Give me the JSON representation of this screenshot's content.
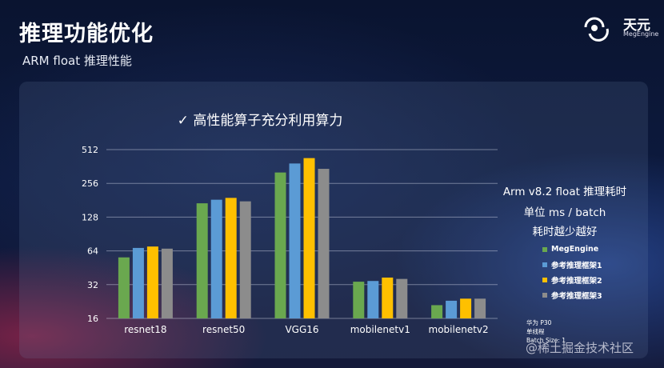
{
  "header": {
    "title": "推理功能优化",
    "subtitle": "ARM float 推理性能"
  },
  "logo": {
    "name": "天元",
    "sub": "MegEngine"
  },
  "info": {
    "line1": "Arm v8.2  float 推理耗时",
    "line2": "单位 ms / batch",
    "line3": "耗时越少越好"
  },
  "device": {
    "line1": "华为 P30",
    "line2": "单线程",
    "line3": "Batch Size: 1"
  },
  "watermark": "@稀土掘金技术社区",
  "chart_data": {
    "type": "bar",
    "title": "✓ 高性能算子充分利用算力",
    "categories": [
      "resnet18",
      "resnet50",
      "VGG16",
      "mobilenetv1",
      "mobilenetv2"
    ],
    "yscale": "log2",
    "ylim": [
      16,
      512
    ],
    "yticks": [
      16,
      32,
      64,
      128,
      256,
      512
    ],
    "grid": true,
    "legend_position": "right",
    "series": [
      {
        "name": "MegEngine",
        "color": "#6aa84f",
        "values": [
          56,
          170,
          320,
          34,
          21
        ]
      },
      {
        "name": "参考推理框架1",
        "color": "#5b9bd5",
        "values": [
          68,
          183,
          385,
          34.5,
          23
        ]
      },
      {
        "name": "参考推理框架2",
        "color": "#ffc000",
        "values": [
          70,
          190,
          430,
          37,
          24
        ]
      },
      {
        "name": "参考推理框架3",
        "color": "#8c8c8c",
        "values": [
          67,
          177,
          345,
          36,
          24
        ]
      }
    ]
  }
}
